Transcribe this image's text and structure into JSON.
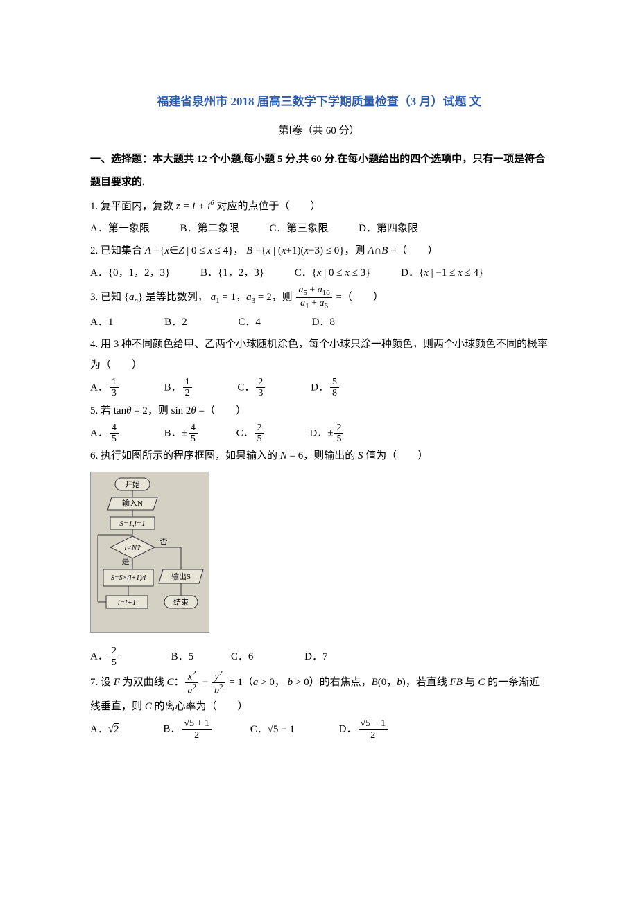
{
  "title": "福建省泉州市 2018 届高三数学下学期质量检查（3 月）试题 文",
  "subtitle": "第Ⅰ卷（共 60 分）",
  "section_header": "一、选择题：本大题共 12 个小题,每小题 5 分,共 60 分.在每小题给出的四个选项中，只有一项是符合题目要求的.",
  "q1": {
    "stem_prefix": "1. 复平面内，复数 ",
    "formula": "z = i + i⁶",
    "stem_suffix": " 对应的点位于（　　）",
    "A": "A．第一象限",
    "B": "B．第二象限",
    "C": "C．第三象限",
    "D": "D．第四象限"
  },
  "q2": {
    "stem": "2. 已知集合 A ={x∈Z | 0 ≤ x ≤ 4}， B ={x | (x+1)(x−3) ≤ 0}，则 A∩B =（　　）",
    "A": "A．{0，1，2，3}",
    "B": "B．{1，2，3}",
    "C": "C．{x | 0 ≤ x ≤ 3}",
    "D": "D．{x | −1 ≤ x ≤ 4}"
  },
  "q3": {
    "stem_prefix": "3. 已知 {",
    "seq": "aₙ",
    "stem_mid1": "} 是等比数列， ",
    "a1": "a₁ = 1",
    "comma1": "，",
    "a3": "a₃ = 2",
    "stem_mid2": "，则 ",
    "frac_num": "a₅ + a₁₀",
    "frac_den": "a₁ + a₆",
    "stem_suffix": " =（　　）",
    "A": "A．1",
    "B": "B．2",
    "C": "C．4",
    "D": "D．8"
  },
  "q4": {
    "stem": "4. 用 3 种不同颜色给甲、乙两个小球随机涂色，每个小球只涂一种颜色，则两个小球颜色不同的概率为（　　）",
    "A_label": "A．",
    "A_num": "1",
    "A_den": "3",
    "B_label": "B．",
    "B_num": "1",
    "B_den": "2",
    "C_label": "C．",
    "C_num": "2",
    "C_den": "3",
    "D_label": "D．",
    "D_num": "5",
    "D_den": "8"
  },
  "q5": {
    "stem_prefix": "5. 若 tan",
    "theta": "θ",
    "eq2": " = 2，则 sin 2",
    "theta2": "θ",
    "stem_suffix": " =（　　）",
    "A_label": "A．",
    "A_num": "4",
    "A_den": "5",
    "B_label": "B．±",
    "B_num": "4",
    "B_den": "5",
    "C_label": "C．",
    "C_num": "2",
    "C_den": "5",
    "D_label": "D．±",
    "D_num": "2",
    "D_den": "5"
  },
  "q6": {
    "stem": "6. 执行如图所示的程序框图，如果输入的 N = 6，则输出的 S 值为（　　）",
    "A_label": "A．",
    "A_num": "2",
    "A_den": "5",
    "B": "B．5",
    "C": "C．6",
    "D": "D．7",
    "flowchart": {
      "start": "开始",
      "input": "输入N",
      "init": "S=1,i=1",
      "cond": "i<N?",
      "no": "否",
      "yes": "是",
      "calc": "S=S×(i+1)/i",
      "output": "输出S",
      "inc": "i=i+1",
      "end": "结束"
    }
  },
  "q7": {
    "stem_prefix": "7. 设 F 为双曲线 C：",
    "frac1_num": "x²",
    "frac1_den": "a²",
    "minus": " − ",
    "frac2_num": "y²",
    "frac2_den": "b²",
    "eq1": " = 1（a > 0， b > 0）的右焦点，B(0，b)，若直线 FB 与 C 的一条渐近线垂直，则 C 的离心率为（　　）",
    "A_label": "A．",
    "A_val": "√2",
    "B_label": "B．",
    "B_num": "√5 + 1",
    "B_den": "2",
    "C_label": "C．",
    "C_val": "√5 − 1",
    "D_label": "D．",
    "D_num": "√5 − 1",
    "D_den": "2"
  }
}
